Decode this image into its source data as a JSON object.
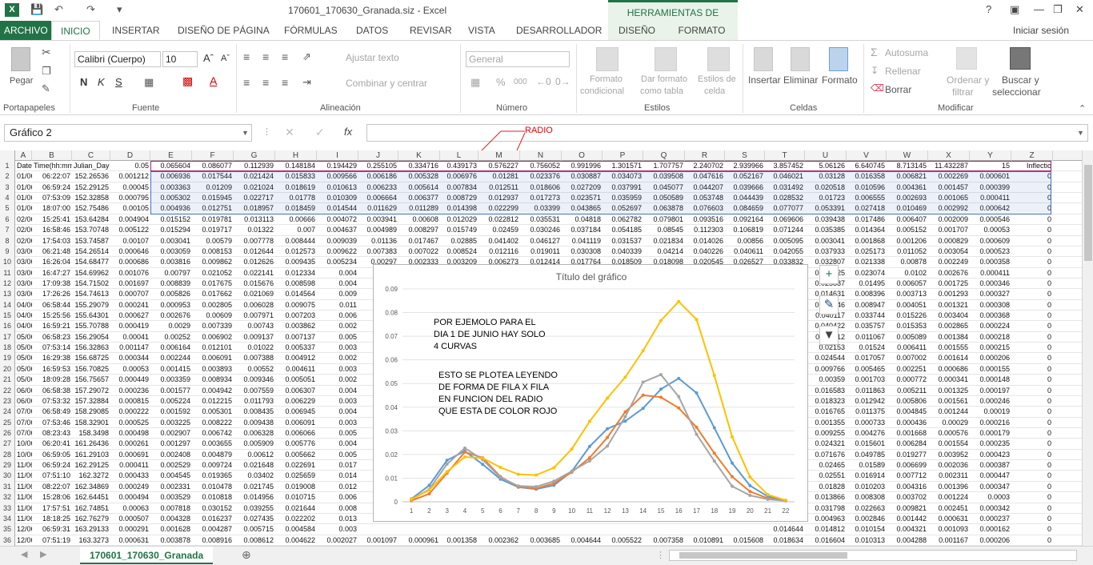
{
  "window": {
    "title": "170601_170630_Granada.siz - Excel",
    "context_tab": "HERRAMIENTAS DE GRÁFICOS",
    "help": "?",
    "sign_in": "Iniciar sesión"
  },
  "tabs": [
    "ARCHIVO",
    "INICIO",
    "INSERTAR",
    "DISEÑO DE PÁGINA",
    "FÓRMULAS",
    "DATOS",
    "REVISAR",
    "VISTA",
    "DESARROLLADOR",
    "DISEÑO",
    "FORMATO"
  ],
  "ribbon": {
    "pegar": "Pegar",
    "portapapeles": "Portapapeles",
    "fuente": "Fuente",
    "font_name": "Calibri (Cuerpo)",
    "font_size": "10",
    "ajustar": "Ajustar texto",
    "combinar": "Combinar y centrar",
    "alineacion": "Alineación",
    "number_format": "General",
    "numero": "Número",
    "formato_cond_1": "Formato",
    "formato_cond_2": "condicional",
    "dar_formato_1": "Dar formato",
    "dar_formato_2": "como tabla",
    "estilos_celda_1": "Estilos de",
    "estilos_celda_2": "celda",
    "estilos": "Estilos",
    "insertar": "Insertar",
    "eliminar": "Eliminar",
    "formato": "Formato",
    "celdas": "Celdas",
    "autosuma": "Autosuma",
    "rellenar": "Rellenar",
    "borrar": "Borrar",
    "ordenar_1": "Ordenar y",
    "ordenar_2": "filtrar",
    "buscar_1": "Buscar y",
    "buscar_2": "seleccionar",
    "modificar": "Modificar"
  },
  "formula_bar": {
    "name_box": "Gráfico 2",
    "fx": "fx",
    "value": ""
  },
  "annotation": {
    "radio": "RADIO",
    "color": "#e02020"
  },
  "columns": [
    "A",
    "B",
    "C",
    "D",
    "E",
    "F",
    "G",
    "H",
    "I",
    "J",
    "K",
    "L",
    "M",
    "N",
    "O",
    "P",
    "Q",
    "R",
    "S",
    "T",
    "U",
    "V",
    "W",
    "X",
    "Y",
    "Z"
  ],
  "row1": [
    "Date(dd-mm-yy",
    "Time(hh:mm",
    "Julian_Day",
    "0.05",
    "0.065604",
    "0.086077",
    "0.112939",
    "0.148184",
    "0.194429",
    "0.255105",
    "0.334716",
    "0.439173",
    "0.576227",
    "0.756052",
    "0.991996",
    "1.301571",
    "1.707757",
    "2.240702",
    "2.939966",
    "3.857452",
    "5.06126",
    "6.640745",
    "8.713145",
    "11.432287",
    "15",
    "Inflectio"
  ],
  "rows": [
    [
      "01/06/2017",
      "06:22:07",
      "152.26536",
      "0.001212",
      "0.006936",
      "0.017544",
      "0.021424",
      "0.015833",
      "0.009566",
      "0.006186",
      "0.005328",
      "0.006976",
      "0.01281",
      "0.023376",
      "0.030887",
      "0.034073",
      "0.039508",
      "0.047616",
      "0.052167",
      "0.046021",
      "0.03128",
      "0.016358",
      "0.006821",
      "0.002269",
      "0.000601",
      "0"
    ],
    [
      "01/06/2017",
      "06:59:24",
      "152.29125",
      "0.00045",
      "0.003363",
      "0.01209",
      "0.021024",
      "0.018619",
      "0.010613",
      "0.006233",
      "0.005614",
      "0.007834",
      "0.012511",
      "0.018606",
      "0.027209",
      "0.037991",
      "0.045077",
      "0.044207",
      "0.039666",
      "0.031492",
      "0.020518",
      "0.010596",
      "0.004361",
      "0.001457",
      "0.000399",
      "0"
    ],
    [
      "01/06/2017",
      "07:53:09",
      "152.32858",
      "0.000795",
      "0.005302",
      "0.015945",
      "0.022717",
      "0.01778",
      "0.010309",
      "0.006664",
      "0.006377",
      "0.008729",
      "0.012937",
      "0.017273",
      "0.023571",
      "0.035959",
      "0.050589",
      "0.053748",
      "0.044439",
      "0.028532",
      "0.01723",
      "0.006555",
      "0.002693",
      "0.001065",
      "0.000411",
      "0"
    ],
    [
      "01/06/2017",
      "18:07:00",
      "152.75486",
      "0.00105",
      "0.004936",
      "0.012751",
      "0.018957",
      "0.018459",
      "0.014544",
      "0.011629",
      "0.011289",
      "0.014398",
      "0.022299",
      "0.03399",
      "0.043865",
      "0.052697",
      "0.063878",
      "0.076603",
      "0.084659",
      "0.077077",
      "0.053391",
      "0.027418",
      "0.010469",
      "0.002992",
      "0.000642",
      "0"
    ],
    [
      "02/06/2017",
      "15:25:41",
      "153.64284",
      "0.004904",
      "0.015152",
      "0.019781",
      "0.013113",
      "0.00666",
      "0.004072",
      "0.003941",
      "0.00608",
      "0.012029",
      "0.022812",
      "0.035531",
      "0.04818",
      "0.062782",
      "0.079801",
      "0.093516",
      "0.092164",
      "0.069606",
      "0.039438",
      "0.017486",
      "0.006407",
      "0.002009",
      "0.000546",
      "0"
    ],
    [
      "02/06/2017",
      "16:58:46",
      "153.70748",
      "0.005122",
      "0.015294",
      "0.019717",
      "0.01322",
      "0.007",
      "0.004637",
      "0.004989",
      "0.008297",
      "0.015749",
      "0.02459",
      "0.030246",
      "0.037184",
      "0.054185",
      "0.08545",
      "0.112303",
      "0.106819",
      "0.071244",
      "0.035385",
      "0.014364",
      "0.005152",
      "0.001707",
      "0.00053",
      "0"
    ],
    [
      "02/06/2017",
      "17:54:03",
      "153.74587",
      "0.00107",
      "0.003041",
      "0.00579",
      "0.007778",
      "0.008444",
      "0.009039",
      "0.01136",
      "0.017467",
      "0.02885",
      "0.041402",
      "0.046127",
      "0.041119",
      "0.031537",
      "0.021834",
      "0.014026",
      "0.00856",
      "0.005095",
      "0.003041",
      "0.001868",
      "0.001206",
      "0.000829",
      "0.000609",
      "0"
    ],
    [
      "03/06/2017",
      "06:21:48",
      "154.26514",
      "0.000646",
      "0.003059",
      "0.008153",
      "0.012644",
      "0.012573",
      "0.009622",
      "0.007383",
      "0.007022",
      "0.008524",
      "0.012116",
      "0.019011",
      "0.030308",
      "0.040339",
      "0.04214",
      "0.040226",
      "0.040611",
      "0.042055",
      "0.037933",
      "0.025173",
      "0.011052",
      "0.003054",
      "0.000523",
      "0"
    ],
    [
      "03/06/2017",
      "16:26:04",
      "154.68477",
      "0.000686",
      "0.003816",
      "0.009862",
      "0.012626",
      "0.009435",
      "0.005234",
      "0.00297",
      "0.002333",
      "0.003209",
      "0.006273",
      "0.012414",
      "0.017764",
      "0.018509",
      "0.018098",
      "0.020545",
      "0.026527",
      "0.033832",
      "0.032807",
      "0.021338",
      "0.00878",
      "0.002249",
      "0.000358",
      "0"
    ],
    [
      "03/06/2017",
      "16:47:27",
      "154.69962",
      "0.001076",
      "0.00797",
      "0.021052",
      "0.022141",
      "0.012334",
      "0.004",
      "",
      "",
      "",
      "",
      "",
      "",
      "",
      "",
      "",
      "",
      "0.04325",
      "0.032525",
      "0.023074",
      "0.0102",
      "0.002676",
      "0.000411",
      "0"
    ],
    [
      "03/06/2017",
      "17:09:38",
      "154.71502",
      "0.001697",
      "0.008839",
      "0.017675",
      "0.015676",
      "0.008598",
      "0.004",
      "",
      "",
      "",
      "",
      "",
      "",
      "",
      "",
      "",
      "",
      "0.0355",
      "0.025887",
      "0.01495",
      "0.006057",
      "0.001725",
      "0.000346",
      "0"
    ],
    [
      "03/06/2017",
      "17:26:26",
      "154.74613",
      "0.000707",
      "0.005826",
      "0.017662",
      "0.021069",
      "0.014564",
      "0.009",
      "",
      "",
      "",
      "",
      "",
      "",
      "",
      "",
      "",
      "",
      "0.02109",
      "0.014631",
      "0.008396",
      "0.003713",
      "0.001293",
      "0.000327",
      "0"
    ],
    [
      "04/06/2017",
      "06:58:44",
      "155.29079",
      "0.000241",
      "0.000953",
      "0.002805",
      "0.006028",
      "0.009075",
      "0.011",
      "",
      "",
      "",
      "",
      "",
      "",
      "",
      "",
      "",
      "",
      "0.03",
      "0.014546",
      "0.008947",
      "0.004051",
      "0.001321",
      "0.000308",
      "0"
    ],
    [
      "04/06/2017",
      "15:25:56",
      "155.64301",
      "0.000627",
      "0.002676",
      "0.00609",
      "0.007971",
      "0.007203",
      "0.006",
      "",
      "",
      "",
      "",
      "",
      "",
      "",
      "",
      "",
      "",
      "0.04",
      "0.040117",
      "0.033744",
      "0.015226",
      "0.003404",
      "0.000368",
      "0"
    ],
    [
      "04/06/2017",
      "16:59:21",
      "155.70788",
      "0.000419",
      "0.0029",
      "0.007339",
      "0.00743",
      "0.003862",
      "0.002",
      "",
      "",
      "",
      "",
      "",
      "",
      "",
      "",
      "",
      "",
      "0.02758",
      "0.040422",
      "0.035757",
      "0.015353",
      "0.002865",
      "0.000224",
      "0"
    ],
    [
      "05/06/2017",
      "06:58:23",
      "156.29054",
      "0.00041",
      "0.00252",
      "0.006902",
      "0.009137",
      "0.007137",
      "0.005",
      "",
      "",
      "",
      "",
      "",
      "",
      "",
      "",
      "",
      "",
      "0.05",
      "0.015112",
      "0.011067",
      "0.005089",
      "0.001384",
      "0.000218",
      "0"
    ],
    [
      "05/06/2017",
      "07:53:14",
      "156.32863",
      "0.001147",
      "0.006164",
      "0.012101",
      "0.01022",
      "0.005337",
      "0.003",
      "",
      "",
      "",
      "",
      "",
      "",
      "",
      "",
      "",
      "",
      "0.0",
      "0.02153",
      "0.01524",
      "0.006411",
      "0.001555",
      "0.000215",
      "0"
    ],
    [
      "05/06/2017",
      "16:29:38",
      "156.68725",
      "0.000344",
      "0.002244",
      "0.006091",
      "0.007388",
      "0.004912",
      "0.002",
      "",
      "",
      "",
      "",
      "",
      "",
      "",
      "",
      "",
      "",
      "0.023272",
      "0.024544",
      "0.017057",
      "0.007002",
      "0.001614",
      "0.000206",
      "0"
    ],
    [
      "05/06/2017",
      "16:59:53",
      "156.70825",
      "0.00053",
      "0.001415",
      "0.003893",
      "0.00552",
      "0.004611",
      "0.003",
      "",
      "",
      "",
      "",
      "",
      "",
      "",
      "",
      "",
      "",
      "0.012989",
      "0.009766",
      "0.005465",
      "0.002251",
      "0.000686",
      "0.000155",
      "0"
    ],
    [
      "05/06/2017",
      "18:09:28",
      "156.75657",
      "0.000449",
      "0.003359",
      "0.008934",
      "0.009346",
      "0.005051",
      "0.002",
      "",
      "",
      "",
      "",
      "",
      "",
      "",
      "",
      "",
      "",
      "0.006934",
      "0.00359",
      "0.001703",
      "0.000772",
      "0.000341",
      "0.000148",
      "0"
    ],
    [
      "06/06/2017",
      "06:58:38",
      "157.29072",
      "0.000236",
      "0.001577",
      "0.004942",
      "0.007559",
      "0.006307",
      "0.004",
      "",
      "",
      "",
      "",
      "",
      "",
      "",
      "",
      "",
      "",
      "0.015708",
      "0.016583",
      "0.011863",
      "0.005211",
      "0.001325",
      "0.000197",
      "0"
    ],
    [
      "06/06/2017",
      "07:53:32",
      "157.32884",
      "0.000815",
      "0.005224",
      "0.012215",
      "0.011793",
      "0.006229",
      "0.003",
      "",
      "",
      "",
      "",
      "",
      "",
      "",
      "",
      "",
      "",
      "0.018121",
      "0.018323",
      "0.012942",
      "0.005806",
      "0.001561",
      "0.000246",
      "0"
    ],
    [
      "07/06/2017",
      "06:58:49",
      "158.29085",
      "0.000222",
      "0.001592",
      "0.005301",
      "0.008435",
      "0.006945",
      "0.004",
      "",
      "",
      "",
      "",
      "",
      "",
      "",
      "",
      "",
      "",
      "0.016749",
      "0.016765",
      "0.011375",
      "0.004845",
      "0.001244",
      "0.00019",
      "0"
    ],
    [
      "07/06/2017",
      "07:53:46",
      "158.32901",
      "0.000525",
      "0.003225",
      "0.008222",
      "0.009438",
      "0.006091",
      "0.003",
      "",
      "",
      "",
      "",
      "",
      "",
      "",
      "",
      "",
      "",
      "0.002653",
      "0.001355",
      "0.000733",
      "0.000436",
      "0.00029",
      "0.000216",
      "0"
    ],
    [
      "07/06/2017",
      "08:23:43",
      "158.3498",
      "0.000498",
      "0.002907",
      "0.006742",
      "0.006328",
      "0.006066",
      "0.005",
      "",
      "",
      "",
      "",
      "",
      "",
      "",
      "",
      "",
      "",
      "0.015471",
      "0.009255",
      "0.004276",
      "0.001668",
      "0.000576",
      "0.000179",
      "0"
    ],
    [
      "10/06/2017",
      "06:20:41",
      "161.26436",
      "0.000261",
      "0.001297",
      "0.003655",
      "0.005909",
      "0.005776",
      "0.004",
      "",
      "",
      "",
      "",
      "",
      "",
      "",
      "",
      "",
      "",
      "0.025409",
      "0.024321",
      "0.015601",
      "0.006284",
      "0.001554",
      "0.000235",
      "0"
    ],
    [
      "10/06/2017",
      "06:59:05",
      "161.29103",
      "0.000691",
      "0.002408",
      "0.004879",
      "0.00612",
      "0.005662",
      "0.005",
      "",
      "",
      "",
      "",
      "",
      "",
      "",
      "",
      "",
      "",
      "0.063943",
      "0.071676",
      "0.049785",
      "0.019277",
      "0.003952",
      "0.000423",
      "0"
    ],
    [
      "11/06/2017",
      "06:59:24",
      "162.29125",
      "0.000411",
      "0.002529",
      "0.009724",
      "0.021648",
      "0.022691",
      "0.017",
      "",
      "",
      "",
      "",
      "",
      "",
      "",
      "",
      "",
      "",
      "0.027433",
      "0.02465",
      "0.01589",
      "0.006699",
      "0.002036",
      "0.000387",
      "0"
    ],
    [
      "11/06/2017",
      "07:51:10",
      "162.3272",
      "0.000433",
      "0.004545",
      "0.019365",
      "0.03402",
      "0.025659",
      "0.014",
      "",
      "",
      "",
      "",
      "",
      "",
      "",
      "",
      "",
      "",
      "0.028394",
      "0.02551",
      "0.016914",
      "0.007712",
      "0.002311",
      "0.000447",
      "0"
    ],
    [
      "11/06/2017",
      "08:22:07",
      "162.34869",
      "0.000249",
      "0.002331",
      "0.010478",
      "0.021745",
      "0.019008",
      "0.012",
      "",
      "",
      "",
      "",
      "",
      "",
      "",
      "",
      "",
      "",
      "0.024484",
      "0.01828",
      "0.010203",
      "0.004316",
      "0.001396",
      "0.000347",
      "0"
    ],
    [
      "11/06/2017",
      "15:28:06",
      "162.64451",
      "0.000494",
      "0.003529",
      "0.010818",
      "0.014956",
      "0.010715",
      "0.006",
      "",
      "",
      "",
      "",
      "",
      "",
      "",
      "",
      "",
      "",
      "0.017549",
      "0.013866",
      "0.008308",
      "0.003702",
      "0.001224",
      "0.0003",
      "0"
    ],
    [
      "11/06/2017",
      "17:57:51",
      "162.74851",
      "0.00063",
      "0.007818",
      "0.030152",
      "0.039255",
      "0.021644",
      "0.008",
      "",
      "",
      "",
      "",
      "",
      "",
      "",
      "",
      "",
      "",
      "0.03284",
      "0.031798",
      "0.022663",
      "0.009821",
      "0.002451",
      "0.000342",
      "0"
    ],
    [
      "11/06/2017",
      "18:18:25",
      "162.76279",
      "0.000507",
      "0.004328",
      "0.016237",
      "0.027435",
      "0.022202",
      "0.013",
      "",
      "",
      "",
      "",
      "",
      "",
      "",
      "",
      "",
      "",
      "0.007973",
      "0.004963",
      "0.002846",
      "0.001442",
      "0.000631",
      "0.000237",
      "0"
    ],
    [
      "12/06/2017",
      "06:59:31",
      "163.29133",
      "0.000291",
      "0.001628",
      "0.004287",
      "0.005715",
      "0.004584",
      "0.003",
      "",
      "",
      "",
      "",
      "",
      "",
      "",
      "",
      "",
      "",
      "0.014644",
      "0.014812",
      "0.010154",
      "0.004321",
      "0.001093",
      "0.000162",
      "0"
    ],
    [
      "12/06/2017",
      "07:51:19",
      "163.3273",
      "0.000631",
      "0.003878",
      "0.008916",
      "0.008612",
      "0.004622",
      "0.002027",
      "0.001097",
      "0.000961",
      "0.001358",
      "0.002362",
      "0.003685",
      "0.004644",
      "0.005522",
      "0.007358",
      "0.010891",
      "0.015608",
      "0.018634",
      "0.016604",
      "0.010313",
      "0.004288",
      "0.001167",
      "0.000206",
      "0"
    ]
  ],
  "chart": {
    "title": "Título del gráfico",
    "note1": "POR EJEMOLO PARA EL\nDIA 1 DE JUNIO HAY SOLO\n4 CURVAS",
    "note2": "ESTO SE PLOTEA LEYENDO\nDE FORMA DE FILA X FILA\nEN FUNCION DEL RADIO\nQUE ESTA DE COLOR ROJO"
  },
  "chart_data": {
    "type": "line",
    "title": "Título del gráfico",
    "xlabel": "",
    "ylabel": "",
    "ylim": [
      0,
      0.09
    ],
    "x": [
      1,
      2,
      3,
      4,
      5,
      6,
      7,
      8,
      9,
      10,
      11,
      12,
      13,
      14,
      15,
      16,
      17,
      18,
      19,
      20,
      21,
      22
    ],
    "yticks": [
      "0",
      "0.01",
      "0.02",
      "0.03",
      "0.04",
      "0.05",
      "0.06",
      "0.07",
      "0.08",
      "0.09"
    ],
    "series": [
      {
        "color": "#5b9bd5",
        "values": [
          0.001212,
          0.006936,
          0.017544,
          0.021424,
          0.015833,
          0.009566,
          0.006186,
          0.005328,
          0.006976,
          0.01281,
          0.023376,
          0.030887,
          0.034073,
          0.039508,
          0.047616,
          0.052167,
          0.046021,
          0.03128,
          0.016358,
          0.006821,
          0.002269,
          0.000601
        ]
      },
      {
        "color": "#ed7d31",
        "values": [
          0.00045,
          0.003363,
          0.01209,
          0.021024,
          0.018619,
          0.010613,
          0.006233,
          0.005614,
          0.007834,
          0.012511,
          0.018606,
          0.027209,
          0.037991,
          0.045077,
          0.044207,
          0.039666,
          0.031492,
          0.020518,
          0.010596,
          0.004361,
          0.001457,
          0.000399
        ]
      },
      {
        "color": "#a5a5a5",
        "values": [
          0.000795,
          0.005302,
          0.015945,
          0.022717,
          0.01778,
          0.010309,
          0.006664,
          0.006377,
          0.008729,
          0.012937,
          0.017273,
          0.023571,
          0.035959,
          0.050589,
          0.053748,
          0.044439,
          0.028532,
          0.01723,
          0.006555,
          0.002693,
          0.001065,
          0.000411
        ]
      },
      {
        "color": "#ffc000",
        "values": [
          0.00105,
          0.004936,
          0.012751,
          0.018957,
          0.018459,
          0.014544,
          0.011629,
          0.011289,
          0.014398,
          0.022299,
          0.03399,
          0.043865,
          0.052697,
          0.063878,
          0.076603,
          0.084659,
          0.077077,
          0.053391,
          0.027418,
          0.010469,
          0.002992,
          0.000642
        ]
      }
    ]
  },
  "sheet": {
    "name": "170601_170630_Granada"
  }
}
